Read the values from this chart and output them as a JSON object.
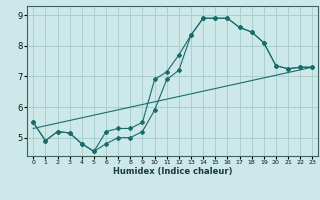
{
  "xlabel": "Humidex (Indice chaleur)",
  "bg_color": "#cce8e8",
  "grid_color": "#aacfcf",
  "line_color": "#1a6b6b",
  "xlim": [
    -0.5,
    23.5
  ],
  "ylim": [
    4.4,
    9.3
  ],
  "xticks": [
    0,
    1,
    2,
    3,
    4,
    5,
    6,
    7,
    8,
    9,
    10,
    11,
    12,
    13,
    14,
    15,
    16,
    17,
    18,
    19,
    20,
    21,
    22,
    23
  ],
  "yticks": [
    5,
    6,
    7,
    8,
    9
  ],
  "curve1_x": [
    0,
    1,
    2,
    3,
    4,
    5,
    6,
    7,
    8,
    9,
    10,
    11,
    12,
    13,
    14,
    15,
    16,
    17,
    18,
    19,
    20,
    21,
    22,
    23
  ],
  "curve1_y": [
    5.5,
    4.9,
    5.2,
    5.15,
    4.8,
    4.55,
    4.8,
    5.0,
    5.0,
    5.2,
    5.9,
    6.9,
    7.2,
    8.35,
    8.9,
    8.9,
    8.9,
    8.6,
    8.45,
    8.1,
    7.35,
    7.25,
    7.3,
    7.3
  ],
  "curve2_x": [
    0,
    1,
    2,
    3,
    4,
    5,
    6,
    7,
    8,
    9,
    10,
    11,
    12,
    13,
    14,
    15,
    16,
    17,
    18,
    19,
    20,
    21,
    22,
    23
  ],
  "curve2_y": [
    5.5,
    4.9,
    5.2,
    5.15,
    4.8,
    4.55,
    5.2,
    5.3,
    5.3,
    5.5,
    6.9,
    7.15,
    7.7,
    8.35,
    8.9,
    8.9,
    8.9,
    8.6,
    8.45,
    8.1,
    7.35,
    7.25,
    7.3,
    7.3
  ],
  "curve3_x": [
    0,
    23
  ],
  "curve3_y": [
    5.3,
    7.3
  ]
}
